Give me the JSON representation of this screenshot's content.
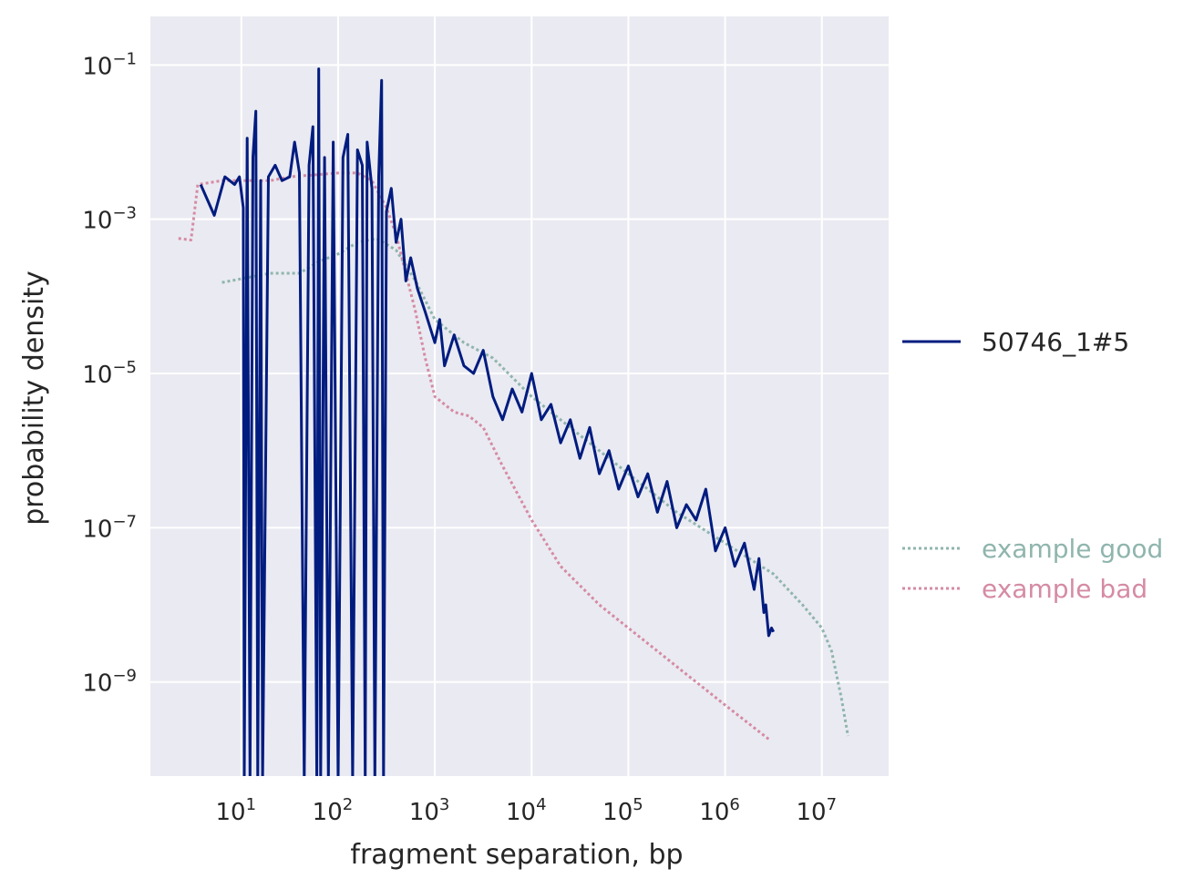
{
  "chart_data": {
    "type": "line",
    "title": "",
    "xlabel": "fragment separation, bp",
    "ylabel": "probability density",
    "xscale": "log",
    "yscale": "log",
    "xlim_log10": [
      0.06,
      7.69
    ],
    "ylim_log10": [
      -10.22,
      -0.37
    ],
    "grid": true,
    "background": "#eaeaf2",
    "x_ticks": [
      {
        "value": 1,
        "base": "10",
        "exp": "1"
      },
      {
        "value": 2,
        "base": "10",
        "exp": "2"
      },
      {
        "value": 3,
        "base": "10",
        "exp": "3"
      },
      {
        "value": 4,
        "base": "10",
        "exp": "4"
      },
      {
        "value": 5,
        "base": "10",
        "exp": "5"
      },
      {
        "value": 6,
        "base": "10",
        "exp": "6"
      },
      {
        "value": 7,
        "base": "10",
        "exp": "7"
      }
    ],
    "y_ticks": [
      {
        "value": -1,
        "base": "10",
        "exp": "−1"
      },
      {
        "value": -3,
        "base": "10",
        "exp": "−3"
      },
      {
        "value": -5,
        "base": "10",
        "exp": "−5"
      },
      {
        "value": -7,
        "base": "10",
        "exp": "−7"
      },
      {
        "value": -9,
        "base": "10",
        "exp": "−9"
      }
    ],
    "legend_placement": "right",
    "series": [
      {
        "name": "50746_1#5",
        "color": "#001c7f",
        "style": "solid",
        "note": "points are [log10 x, log10 y]; null y = zero density",
        "points": [
          [
            0.58,
            -2.55
          ],
          [
            0.72,
            -2.95
          ],
          [
            0.83,
            -2.45
          ],
          [
            0.93,
            -2.55
          ],
          [
            0.98,
            -2.45
          ],
          [
            1.02,
            -2.85
          ],
          [
            1.03,
            null
          ],
          [
            1.06,
            -1.95
          ],
          [
            1.09,
            null
          ],
          [
            1.12,
            -2.2
          ],
          [
            1.15,
            -1.6
          ],
          [
            1.17,
            null
          ],
          [
            1.2,
            -2.5
          ],
          [
            1.22,
            null
          ],
          [
            1.28,
            -2.45
          ],
          [
            1.35,
            -2.3
          ],
          [
            1.42,
            -2.5
          ],
          [
            1.5,
            -2.45
          ],
          [
            1.55,
            -2.0
          ],
          [
            1.6,
            -2.4
          ],
          [
            1.65,
            null
          ],
          [
            1.7,
            -2.3
          ],
          [
            1.74,
            -1.8
          ],
          [
            1.78,
            null
          ],
          [
            1.8,
            -1.05
          ],
          [
            1.82,
            null
          ],
          [
            1.86,
            -2.2
          ],
          [
            1.9,
            null
          ],
          [
            1.95,
            -2.0
          ],
          [
            2.0,
            null
          ],
          [
            2.05,
            -2.2
          ],
          [
            2.1,
            -1.9
          ],
          [
            2.15,
            null
          ],
          [
            2.2,
            -2.1
          ],
          [
            2.25,
            -2.3
          ],
          [
            2.28,
            null
          ],
          [
            2.3,
            -2.0
          ],
          [
            2.35,
            -2.6
          ],
          [
            2.38,
            null
          ],
          [
            2.42,
            -2.45
          ],
          [
            2.45,
            -1.2
          ],
          [
            2.47,
            null
          ],
          [
            2.5,
            -2.9
          ],
          [
            2.55,
            -2.6
          ],
          [
            2.6,
            -3.3
          ],
          [
            2.65,
            -3.0
          ],
          [
            2.7,
            -3.8
          ],
          [
            2.75,
            -3.5
          ],
          [
            2.82,
            -3.9
          ],
          [
            2.9,
            -4.2
          ],
          [
            3.0,
            -4.6
          ],
          [
            3.05,
            -4.3
          ],
          [
            3.1,
            -4.9
          ],
          [
            3.2,
            -4.5
          ],
          [
            3.3,
            -4.9
          ],
          [
            3.4,
            -5.0
          ],
          [
            3.5,
            -4.7
          ],
          [
            3.6,
            -5.3
          ],
          [
            3.7,
            -5.6
          ],
          [
            3.8,
            -5.2
          ],
          [
            3.9,
            -5.5
          ],
          [
            4.0,
            -5.0
          ],
          [
            4.1,
            -5.6
          ],
          [
            4.2,
            -5.4
          ],
          [
            4.3,
            -5.9
          ],
          [
            4.4,
            -5.6
          ],
          [
            4.5,
            -6.1
          ],
          [
            4.6,
            -5.7
          ],
          [
            4.7,
            -6.3
          ],
          [
            4.8,
            -6.0
          ],
          [
            4.9,
            -6.5
          ],
          [
            5.0,
            -6.2
          ],
          [
            5.1,
            -6.6
          ],
          [
            5.2,
            -6.3
          ],
          [
            5.3,
            -6.8
          ],
          [
            5.4,
            -6.4
          ],
          [
            5.5,
            -7.0
          ],
          [
            5.6,
            -6.7
          ],
          [
            5.7,
            -6.9
          ],
          [
            5.8,
            -6.5
          ],
          [
            5.9,
            -7.3
          ],
          [
            6.0,
            -7.0
          ],
          [
            6.1,
            -7.5
          ],
          [
            6.2,
            -7.2
          ],
          [
            6.3,
            -7.8
          ],
          [
            6.35,
            -7.4
          ],
          [
            6.4,
            -8.1
          ],
          [
            6.42,
            -8.0
          ],
          [
            6.45,
            -8.4
          ],
          [
            6.48,
            -8.3
          ],
          [
            6.5,
            -8.35
          ]
        ]
      },
      {
        "name": "example good",
        "color": "#8fb5ad",
        "style": "dotted",
        "points": [
          [
            0.8,
            -3.82
          ],
          [
            1.3,
            -3.7
          ],
          [
            1.6,
            -3.7
          ],
          [
            1.8,
            -3.55
          ],
          [
            2.0,
            -3.45
          ],
          [
            2.2,
            -3.3
          ],
          [
            2.4,
            -3.25
          ],
          [
            2.6,
            -3.4
          ],
          [
            2.8,
            -3.8
          ],
          [
            3.0,
            -4.3
          ],
          [
            3.3,
            -4.6
          ],
          [
            3.6,
            -4.8
          ],
          [
            4.0,
            -5.3
          ],
          [
            4.5,
            -5.8
          ],
          [
            5.0,
            -6.3
          ],
          [
            5.5,
            -6.8
          ],
          [
            6.0,
            -7.2
          ],
          [
            6.5,
            -7.6
          ],
          [
            6.8,
            -8.0
          ],
          [
            7.0,
            -8.3
          ],
          [
            7.1,
            -8.6
          ],
          [
            7.2,
            -9.2
          ],
          [
            7.27,
            -9.7
          ]
        ]
      },
      {
        "name": "example bad",
        "color": "#d58ba3",
        "style": "dotted",
        "points": [
          [
            0.35,
            -3.25
          ],
          [
            0.48,
            -3.27
          ],
          [
            0.55,
            -2.55
          ],
          [
            0.8,
            -2.5
          ],
          [
            1.3,
            -2.5
          ],
          [
            1.5,
            -2.45
          ],
          [
            1.8,
            -2.42
          ],
          [
            2.0,
            -2.4
          ],
          [
            2.2,
            -2.4
          ],
          [
            2.35,
            -2.5
          ],
          [
            2.5,
            -2.85
          ],
          [
            2.6,
            -3.2
          ],
          [
            2.7,
            -3.7
          ],
          [
            2.8,
            -4.2
          ],
          [
            2.9,
            -4.8
          ],
          [
            3.0,
            -5.3
          ],
          [
            3.2,
            -5.5
          ],
          [
            3.35,
            -5.55
          ],
          [
            3.5,
            -5.7
          ],
          [
            3.7,
            -6.2
          ],
          [
            4.0,
            -6.9
          ],
          [
            4.3,
            -7.5
          ],
          [
            4.7,
            -8.0
          ],
          [
            5.0,
            -8.3
          ],
          [
            5.5,
            -8.8
          ],
          [
            6.0,
            -9.3
          ],
          [
            6.47,
            -9.76
          ]
        ]
      }
    ]
  }
}
